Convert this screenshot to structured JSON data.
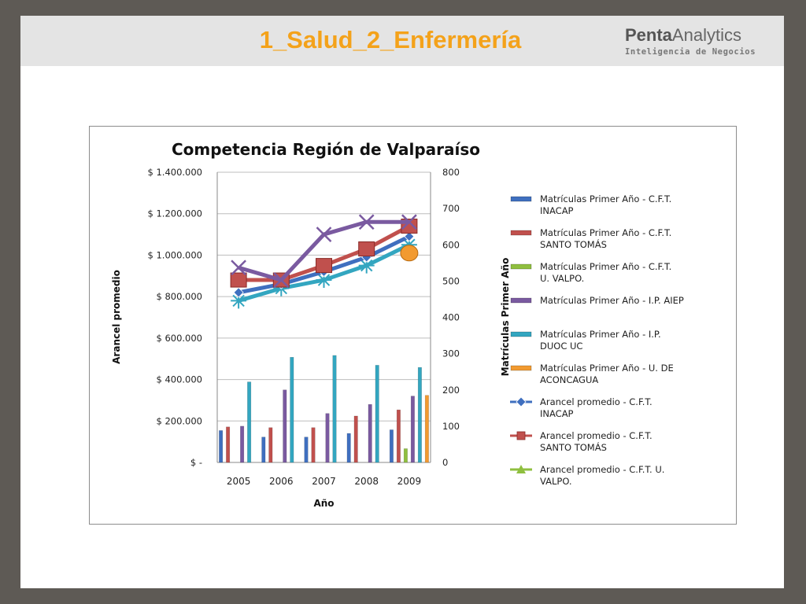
{
  "slide": {
    "title": "1_Salud_2_Enfermería",
    "logo": {
      "name_bold": "Penta",
      "name_regular": "Analytics",
      "tagline": "Inteligencia de Negocios"
    }
  },
  "colors": {
    "header_bg": "#e4e4e4",
    "frame_bg": "#5e5a55",
    "title": "#f4a21a",
    "inacap": "#3f6fbf",
    "santo_tomas": "#c0504d",
    "valpo": "#8fbf3f",
    "aiep": "#7a5aa0",
    "duoc": "#33a6c0",
    "aconcagua": "#f29a30"
  },
  "chart_data": {
    "type": "bar+line",
    "title": "Competencia Región de Valparaíso",
    "xlabel": "Año",
    "ylabel_left": "Arancel promedio",
    "ylabel_right": "Matrículas Primer Año",
    "categories": [
      "2005",
      "2006",
      "2007",
      "2008",
      "2009"
    ],
    "y_left": {
      "min": 0,
      "max": 1400000,
      "ticks": [
        "$ -",
        "$ 200.000",
        "$ 400.000",
        "$ 600.000",
        "$ 800.000",
        "$ 1.000.000",
        "$ 1.200.000",
        "$ 1.400.000"
      ]
    },
    "y_right": {
      "min": 0,
      "max": 800,
      "ticks": [
        "0",
        "100",
        "200",
        "300",
        "400",
        "500",
        "600",
        "700",
        "800"
      ]
    },
    "bar_series": [
      {
        "name": "Matrículas Primer Año - C.F.T. INACAP",
        "color": "#3f6fbf",
        "values": [
          88,
          70,
          70,
          80,
          90
        ]
      },
      {
        "name": "Matrículas Primer Año - C.F.T. SANTO TOMÁS",
        "color": "#c0504d",
        "values": [
          98,
          96,
          96,
          128,
          145
        ]
      },
      {
        "name": "Matrículas Primer Año - C.F.T. U. VALPO.",
        "color": "#8fbf3f",
        "values": [
          null,
          null,
          null,
          null,
          38
        ]
      },
      {
        "name": "Matrículas Primer Año - I.P. AIEP",
        "color": "#7a5aa0",
        "values": [
          100,
          200,
          135,
          160,
          183
        ]
      },
      {
        "name": "Matrículas Primer Año - I.P. DUOC UC",
        "color": "#33a6c0",
        "values": [
          222,
          290,
          295,
          268,
          262
        ]
      },
      {
        "name": "Matrículas Primer Año - U. DE ACONCAGUA",
        "color": "#f29a30",
        "values": [
          null,
          null,
          null,
          null,
          185
        ]
      }
    ],
    "line_series": [
      {
        "name": "Arancel promedio - C.F.T. INACAP",
        "color": "#3f6fbf",
        "marker": "diamond",
        "values": [
          820000,
          860000,
          920000,
          990000,
          1090000
        ]
      },
      {
        "name": "Arancel promedio - C.F.T. SANTO TOMÁS",
        "color": "#c0504d",
        "marker": "square",
        "values": [
          880000,
          880000,
          950000,
          1030000,
          1140000
        ]
      },
      {
        "name": "Arancel promedio - C.F.T. U. VALPO.",
        "color": "#8fbf3f",
        "marker": "triangle",
        "values": [
          null,
          null,
          null,
          null,
          null
        ]
      },
      {
        "name": "Arancel promedio - I.P. AIEP",
        "color": "#7a5aa0",
        "marker": "x",
        "values": [
          940000,
          880000,
          1100000,
          1160000,
          1160000
        ]
      },
      {
        "name": "Arancel promedio - I.P. DUOC UC",
        "color": "#33a6c0",
        "marker": "star",
        "values": [
          780000,
          840000,
          880000,
          950000,
          1050000
        ]
      },
      {
        "name": "Arancel promedio - U. DE ACONCAGUA",
        "color": "#f29a30",
        "marker": "circle",
        "values": [
          null,
          null,
          null,
          null,
          1010000
        ]
      }
    ],
    "legend": {
      "placement": "right",
      "entries": [
        {
          "lines": [
            "Matrículas Primer Año - C.F.T.",
            "INACAP"
          ],
          "color": "#3f6fbf",
          "kind": "bar"
        },
        {
          "lines": [
            "Matrículas Primer Año - C.F.T.",
            "SANTO TOMÁS"
          ],
          "color": "#c0504d",
          "kind": "bar"
        },
        {
          "lines": [
            "Matrículas Primer Año - C.F.T.",
            "U. VALPO."
          ],
          "color": "#8fbf3f",
          "kind": "bar"
        },
        {
          "lines": [
            "Matrículas Primer Año - I.P. AIEP"
          ],
          "color": "#7a5aa0",
          "kind": "bar"
        },
        {
          "lines": [
            "Matrículas Primer Año - I.P.",
            "DUOC UC"
          ],
          "color": "#33a6c0",
          "kind": "bar"
        },
        {
          "lines": [
            "Matrículas Primer Año - U. DE",
            "ACONCAGUA"
          ],
          "color": "#f29a30",
          "kind": "bar"
        },
        {
          "lines": [
            "Arancel promedio  - C.F.T.",
            "INACAP"
          ],
          "color": "#3f6fbf",
          "kind": "line",
          "marker": "diamond"
        },
        {
          "lines": [
            "Arancel promedio  - C.F.T.",
            "SANTO TOMÁS"
          ],
          "color": "#c0504d",
          "kind": "line",
          "marker": "square"
        },
        {
          "lines": [
            "Arancel promedio  - C.F.T. U.",
            "VALPO."
          ],
          "color": "#8fbf3f",
          "kind": "line",
          "marker": "triangle"
        }
      ]
    },
    "grid": true
  }
}
